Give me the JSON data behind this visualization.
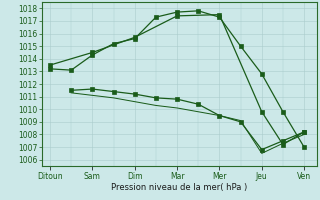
{
  "xlabel": "Pression niveau de la mer( hPa )",
  "background_color": "#cce8e8",
  "grid_color": "#aacccc",
  "line_color": "#1a5c1a",
  "ylim": [
    1005.5,
    1018.5
  ],
  "yticks": [
    1006,
    1007,
    1008,
    1009,
    1010,
    1011,
    1012,
    1013,
    1014,
    1015,
    1016,
    1017,
    1018
  ],
  "x_labels": [
    "Ditoun",
    "Sam",
    "Dim",
    "Mar",
    "Mer",
    "Jeu",
    "Ven"
  ],
  "xlim": [
    -0.2,
    6.3
  ],
  "series1_x": [
    0,
    0.5,
    1.0,
    1.5,
    2.0,
    2.5,
    3.0,
    3.5,
    4.0,
    4.5,
    5.0,
    5.5,
    6.0
  ],
  "series1_y": [
    1013.2,
    1013.1,
    1014.3,
    1015.2,
    1015.6,
    1017.3,
    1017.7,
    1017.8,
    1017.3,
    1015.0,
    1012.8,
    1009.8,
    1007.0
  ],
  "series2_x": [
    0,
    1.0,
    2.0,
    3.0,
    4.0,
    5.0,
    5.5,
    6.0
  ],
  "series2_y": [
    1013.5,
    1014.5,
    1015.7,
    1017.4,
    1017.5,
    1009.8,
    1007.2,
    1008.2
  ],
  "series3_x": [
    0.5,
    1.0,
    1.5,
    2.0,
    2.5,
    3.0,
    3.5,
    4.0,
    4.5,
    5.0,
    5.5,
    6.0
  ],
  "series3_y": [
    1011.5,
    1011.6,
    1011.4,
    1011.2,
    1010.9,
    1010.8,
    1010.4,
    1009.5,
    1009.0,
    1006.8,
    1007.5,
    1008.2
  ],
  "series4_x": [
    0.5,
    1.0,
    1.5,
    2.0,
    2.5,
    3.0,
    3.5,
    4.0,
    4.5,
    5.0,
    5.5,
    6.0
  ],
  "series4_y": [
    1011.3,
    1011.1,
    1010.9,
    1010.6,
    1010.3,
    1010.1,
    1009.8,
    1009.5,
    1009.1,
    1006.5,
    1007.3,
    1008.0
  ],
  "tick_fontsize": 5.5,
  "xlabel_fontsize": 6.0,
  "marker_size": 2.5,
  "line_width": 0.9
}
